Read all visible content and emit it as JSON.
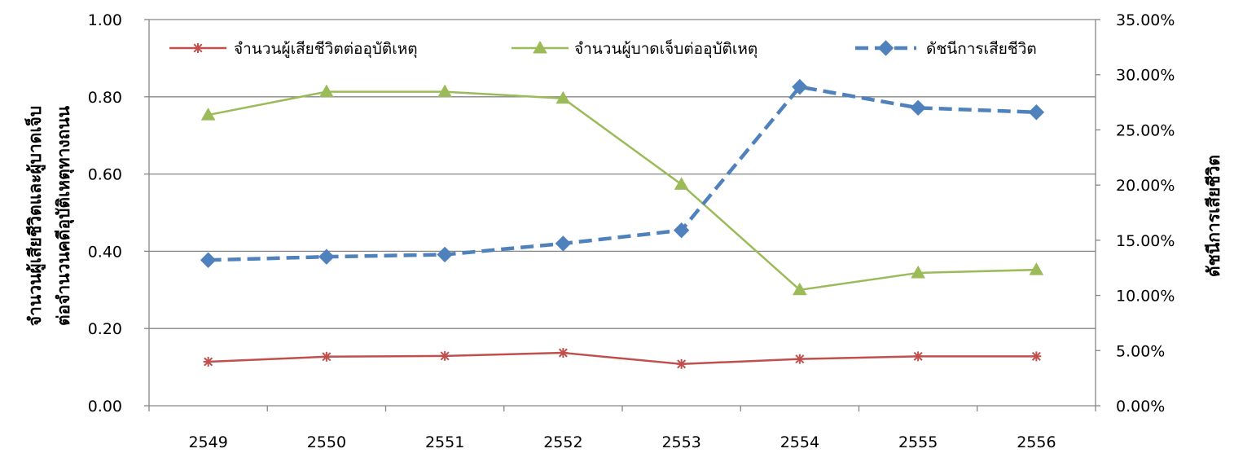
{
  "chart_data": {
    "type": "line",
    "categories": [
      "2549",
      "2550",
      "2551",
      "2552",
      "2553",
      "2554",
      "2555",
      "2556"
    ],
    "y_left": {
      "label_line1": "จำนวนผู้เสียชีวิตและผู้บาดเจ็บ",
      "label_line2": "ต่อจำนวนคดีอุบัติเหตุทางถนน",
      "ylim": [
        0,
        1
      ],
      "ticks": [
        "0.00",
        "0.20",
        "0.40",
        "0.60",
        "0.80",
        "1.00"
      ]
    },
    "y_right": {
      "label": "ดัชนีการเสียชีวิต",
      "ylim": [
        0,
        0.35
      ],
      "ticks": [
        "0.00%",
        "5.00%",
        "10.00%",
        "15.00%",
        "20.00%",
        "25.00%",
        "30.00%",
        "35.00%"
      ]
    },
    "grid": "horizontal major (left axis)",
    "legend_position": "top",
    "series": [
      {
        "name": "จำนวนผู้เสียชีวิตต่ออุบัติเหตุ",
        "axis": "left",
        "color": "#c0504d",
        "marker": "star",
        "values": [
          0.114,
          0.127,
          0.129,
          0.137,
          0.108,
          0.121,
          0.128,
          0.128
        ]
      },
      {
        "name": "จำนวนผู้บาดเจ็บต่ออุบัติเหตุ",
        "axis": "left",
        "color": "#9bbb59",
        "marker": "triangle",
        "values": [
          0.753,
          0.813,
          0.813,
          0.796,
          0.573,
          0.3,
          0.344,
          0.352
        ]
      },
      {
        "name": "ดัชนีการเสียชีวิต",
        "axis": "right",
        "color": "#4f81bd",
        "marker": "diamond",
        "dashed": true,
        "values": [
          0.132,
          0.135,
          0.137,
          0.147,
          0.159,
          0.289,
          0.27,
          0.266
        ]
      }
    ]
  }
}
